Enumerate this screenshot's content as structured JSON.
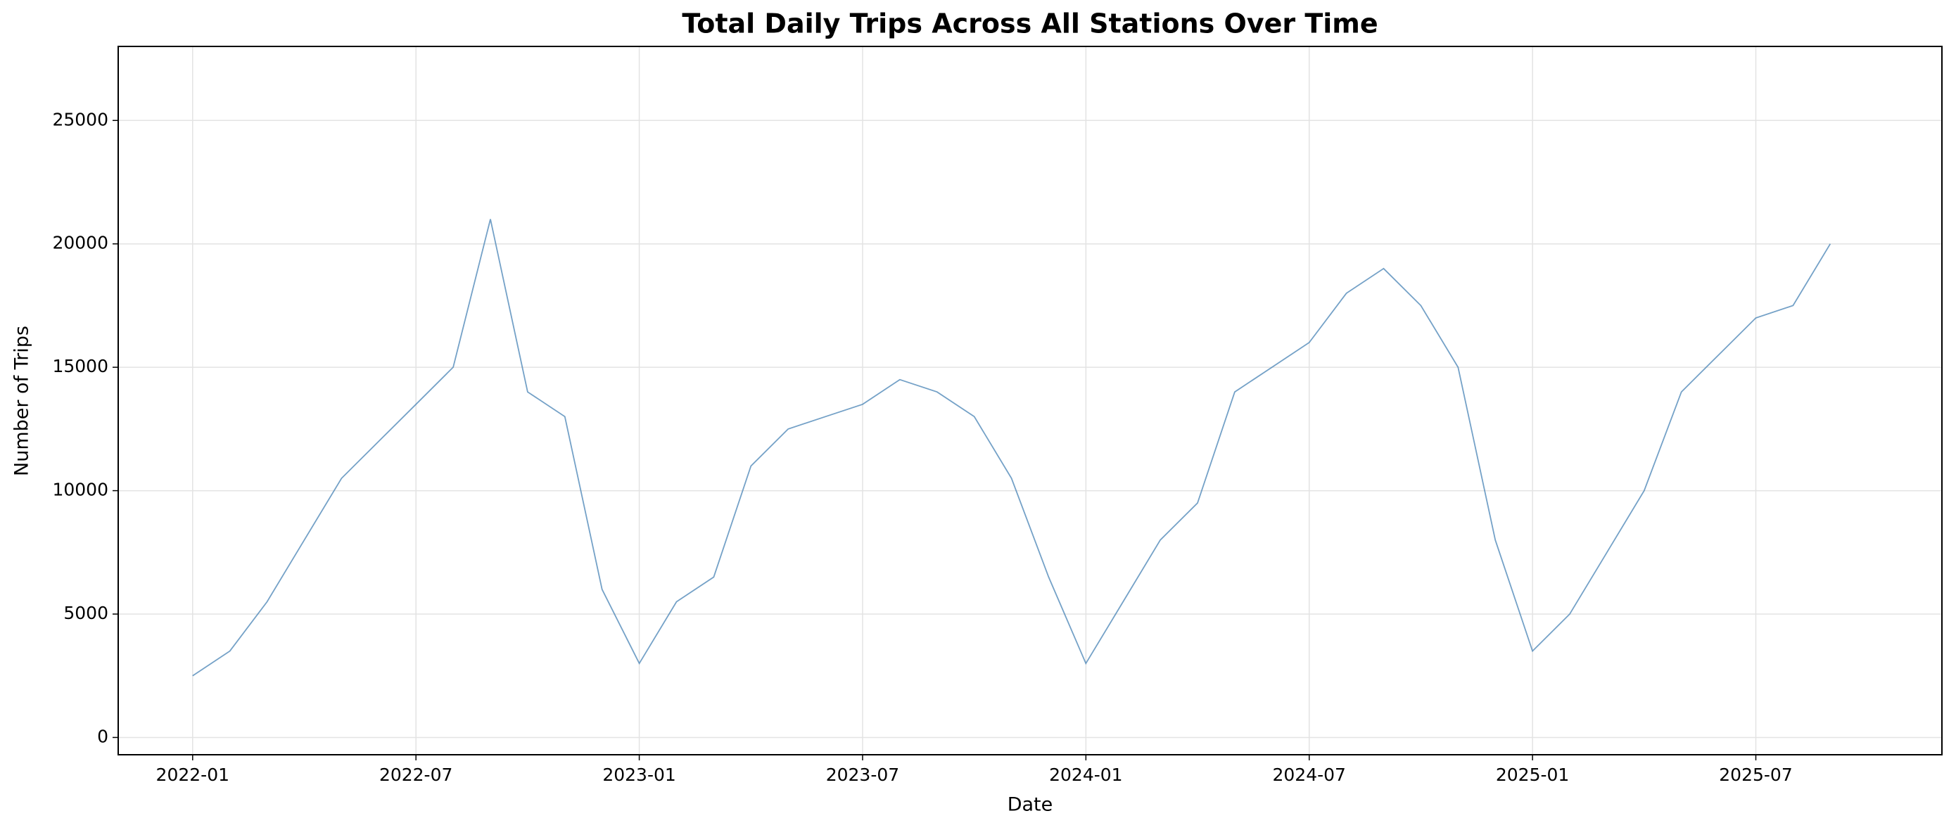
{
  "chart_data": {
    "type": "line",
    "title": "Total Daily Trips Across All Stations Over Time",
    "x_label": "Date",
    "y_label": "Number of Trips",
    "x": [
      "2022-01",
      "2022-02",
      "2022-03",
      "2022-04",
      "2022-05",
      "2022-06",
      "2022-07",
      "2022-08",
      "2022-09",
      "2022-10",
      "2022-11",
      "2022-12",
      "2023-01",
      "2023-02",
      "2023-03",
      "2023-04",
      "2023-05",
      "2023-06",
      "2023-07",
      "2023-08",
      "2023-09",
      "2023-10",
      "2023-11",
      "2023-12",
      "2024-01",
      "2024-02",
      "2024-03",
      "2024-04",
      "2024-05",
      "2024-06",
      "2024-07",
      "2024-08",
      "2024-09",
      "2024-10",
      "2024-11",
      "2024-12",
      "2025-01",
      "2025-02",
      "2025-03",
      "2025-04",
      "2025-05",
      "2025-06",
      "2025-07",
      "2025-08",
      "2025-09"
    ],
    "series": [
      {
        "name": "Total Daily Trips",
        "color": "#4682b4",
        "values": [
          2500,
          3500,
          5500,
          8000,
          10500,
          12000,
          13500,
          15000,
          21000,
          14000,
          13000,
          6000,
          3000,
          5500,
          6500,
          11000,
          12500,
          13000,
          13500,
          14500,
          14000,
          13000,
          10500,
          6500,
          3000,
          5500,
          8000,
          9500,
          14000,
          15000,
          16000,
          18000,
          19000,
          17500,
          15000,
          8000,
          3500,
          5000,
          7500,
          10000,
          14000,
          15500,
          17000,
          17500,
          20000
        ]
      }
    ],
    "xlim": [
      "2021-11",
      "2025-12"
    ],
    "xticks": [
      "2022-01",
      "2022-07",
      "2023-01",
      "2023-07",
      "2024-01",
      "2024-07",
      "2025-01",
      "2025-07"
    ],
    "ylim": [
      -700,
      28000
    ],
    "yticks": [
      0,
      5000,
      10000,
      15000,
      20000,
      25000
    ],
    "grid": true
  }
}
